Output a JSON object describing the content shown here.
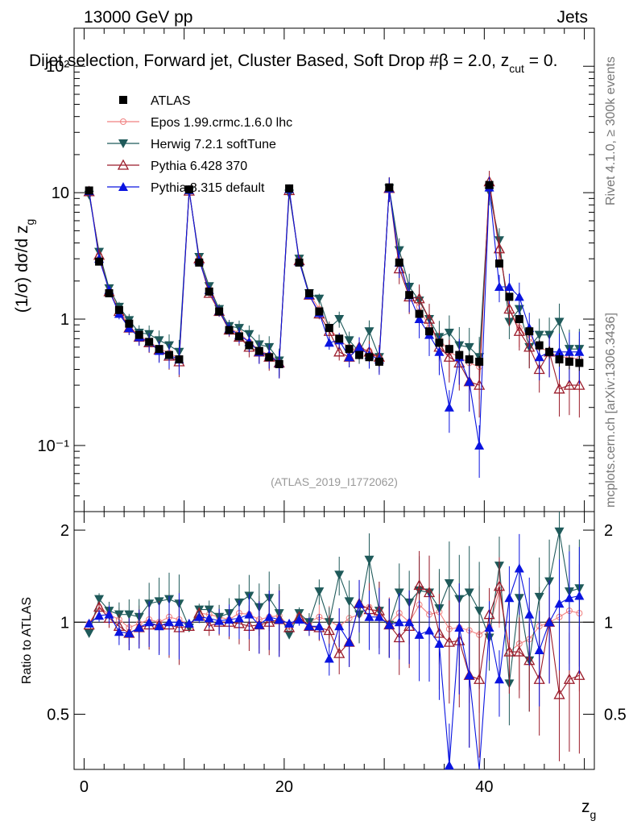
{
  "header": {
    "left": "13000 GeV pp",
    "right": "Jets",
    "title": "Dijet selection, Forward jet, Cluster Based, Soft Drop #β = 2.0, z",
    "title_sub": "cut",
    "title_tail": " = 0.",
    "side_rivet": "Rivet 4.1.0, ≥ 300k events",
    "side_mcplots": "mcplots.cern.ch [arXiv:1306.3436]",
    "watermark": "(ATLAS_2019_I1772062)"
  },
  "chart_data": {
    "type": "scatter",
    "xlabel": "z",
    "xlabel_sub": "g",
    "ylabel": "(1/σ) dσ/d z",
    "ylabel_sub": "g",
    "ratio_ylabel": "Ratio to ATLAS",
    "xlim": [
      -1,
      51
    ],
    "ylim_main": [
      0.03,
      200
    ],
    "ylim_ratio": [
      0.33,
      2.3
    ],
    "x_ticks": [
      "0",
      "20",
      "40"
    ],
    "y_ticks_main": [
      "10⁻¹",
      "1",
      "10",
      "10²"
    ],
    "y_ticks_ratio": [
      "0.5",
      "1",
      "2"
    ],
    "colors": {
      "ATLAS": "#000000",
      "Epos": "#f08080",
      "Herwig": "#1f5a5a",
      "Pythia6": "#9b1b2a",
      "Pythia8": "#0a14e0"
    },
    "x": [
      0.5,
      1.5,
      2.5,
      3.5,
      4.5,
      5.5,
      6.5,
      7.5,
      8.5,
      9.5,
      10.5,
      11.5,
      12.5,
      13.5,
      14.5,
      15.5,
      16.5,
      17.5,
      18.5,
      19.5,
      20.5,
      21.5,
      22.5,
      23.5,
      24.5,
      25.5,
      26.5,
      27.5,
      28.5,
      29.5,
      30.5,
      31.5,
      32.5,
      33.5,
      34.5,
      35.5,
      36.5,
      37.5,
      38.5,
      39.5,
      40.5,
      41.5,
      42.5,
      43.5,
      44.5,
      45.5,
      46.5,
      47.5,
      48.5,
      49.5
    ],
    "series": [
      {
        "name": "ATLAS",
        "marker": "square",
        "values": [
          10.4,
          2.85,
          1.6,
          1.18,
          0.92,
          0.75,
          0.66,
          0.58,
          0.52,
          0.48,
          10.6,
          2.8,
          1.65,
          1.15,
          0.82,
          0.73,
          0.62,
          0.56,
          0.5,
          0.44,
          10.8,
          2.8,
          1.6,
          1.15,
          0.85,
          0.7,
          0.58,
          0.52,
          0.5,
          0.46,
          11.0,
          2.8,
          1.55,
          1.1,
          0.8,
          0.65,
          0.58,
          0.52,
          0.48,
          0.46,
          11.5,
          2.75,
          1.5,
          1.0,
          0.8,
          0.62,
          0.55,
          0.48,
          0.46,
          0.45
        ],
        "err": [
          0.3,
          0.08,
          0.05,
          0.04,
          0.03,
          0.03,
          0.03,
          0.03,
          0.03,
          0.03,
          0.3,
          0.08,
          0.05,
          0.04,
          0.03,
          0.03,
          0.03,
          0.03,
          0.03,
          0.03,
          0.3,
          0.08,
          0.05,
          0.04,
          0.04,
          0.04,
          0.04,
          0.04,
          0.04,
          0.04,
          0.3,
          0.1,
          0.06,
          0.05,
          0.05,
          0.05,
          0.05,
          0.05,
          0.05,
          0.05,
          0.4,
          0.1,
          0.07,
          0.06,
          0.06,
          0.06,
          0.06,
          0.06,
          0.06,
          0.06
        ]
      },
      {
        "name": "Epos 1.99.crmc.1.6.0 lhc",
        "marker": "cross-circle",
        "values": [
          10.3,
          3.2,
          1.7,
          1.2,
          0.88,
          0.74,
          0.67,
          0.58,
          0.54,
          0.49,
          10.4,
          3.0,
          1.75,
          1.2,
          0.84,
          0.78,
          0.66,
          0.57,
          0.52,
          0.46,
          10.5,
          2.95,
          1.6,
          1.2,
          0.86,
          0.68,
          0.6,
          0.55,
          0.56,
          0.48,
          10.9,
          3.0,
          1.55,
          1.25,
          0.85,
          0.7,
          0.55,
          0.5,
          0.45,
          0.42,
          11.0,
          3.5,
          1.2,
          0.85,
          0.7,
          0.6,
          0.55,
          0.5,
          0.5,
          0.48
        ],
        "ratio": [
          0.99,
          1.12,
          1.06,
          1.02,
          0.96,
          0.99,
          1.02,
          1.0,
          1.04,
          1.02,
          0.98,
          1.07,
          1.06,
          1.04,
          1.02,
          1.07,
          1.06,
          1.02,
          1.04,
          1.05,
          0.97,
          1.05,
          1.0,
          1.04,
          1.01,
          0.97,
          1.03,
          1.06,
          1.12,
          1.04,
          0.99,
          1.07,
          1.0,
          1.14,
          1.06,
          1.08,
          0.95,
          0.96,
          0.94,
          0.91,
          0.96,
          1.27,
          0.8,
          0.85,
          0.88,
          0.97,
          1.0,
          1.04,
          1.09,
          1.07
        ]
      },
      {
        "name": "Herwig 7.2.1 softTune",
        "marker": "triangle-down",
        "values": [
          9.6,
          3.4,
          1.75,
          1.25,
          0.98,
          0.78,
          0.76,
          0.68,
          0.62,
          0.55,
          10.2,
          3.1,
          1.82,
          1.2,
          0.88,
          0.85,
          0.76,
          0.63,
          0.6,
          0.47,
          9.8,
          3.0,
          1.6,
          1.45,
          0.85,
          1.0,
          0.68,
          0.55,
          0.8,
          0.5,
          10.8,
          3.5,
          1.8,
          1.4,
          1.0,
          0.72,
          0.78,
          0.62,
          0.6,
          0.5,
          10.2,
          4.2,
          0.95,
          1.2,
          0.6,
          0.75,
          0.75,
          0.95,
          0.58,
          0.58
        ],
        "ratio": [
          0.92,
          1.19,
          1.09,
          1.06,
          1.06,
          1.04,
          1.15,
          1.17,
          1.19,
          1.15,
          0.96,
          1.1,
          1.1,
          1.04,
          1.07,
          1.16,
          1.22,
          1.12,
          1.2,
          1.07,
          0.91,
          1.07,
          1.0,
          1.26,
          1.0,
          1.43,
          1.17,
          1.06,
          1.6,
          1.09,
          0.98,
          1.25,
          1.16,
          1.27,
          1.25,
          1.11,
          1.34,
          1.19,
          1.25,
          1.09,
          0.89,
          1.53,
          0.63,
          1.2,
          0.75,
          1.21,
          1.36,
          1.98,
          1.26,
          1.29
        ]
      },
      {
        "name": "Pythia 6.428 370",
        "marker": "triangle-up-open",
        "values": [
          10.2,
          3.2,
          1.65,
          1.15,
          0.85,
          0.72,
          0.65,
          0.57,
          0.51,
          0.46,
          10.3,
          3.0,
          1.6,
          1.15,
          0.82,
          0.72,
          0.6,
          0.55,
          0.5,
          0.45,
          10.4,
          2.9,
          1.55,
          1.1,
          0.8,
          0.55,
          0.5,
          0.6,
          0.55,
          0.5,
          10.8,
          2.5,
          1.5,
          1.45,
          1.0,
          0.6,
          0.5,
          0.45,
          0.32,
          0.3,
          12.2,
          3.6,
          1.2,
          0.8,
          0.6,
          0.4,
          0.55,
          0.28,
          0.3,
          0.3
        ],
        "ratio": [
          0.98,
          1.12,
          1.03,
          0.97,
          0.92,
          0.96,
          0.98,
          0.98,
          0.98,
          0.96,
          0.97,
          1.07,
          0.97,
          1.0,
          1.0,
          0.99,
          0.97,
          0.98,
          1.0,
          1.02,
          0.96,
          1.04,
          0.97,
          0.96,
          0.94,
          0.79,
          0.86,
          1.15,
          1.1,
          1.09,
          0.98,
          0.89,
          0.97,
          1.32,
          1.25,
          0.92,
          0.86,
          0.87,
          0.67,
          0.65,
          1.06,
          1.31,
          0.8,
          0.8,
          0.75,
          0.65,
          1.0,
          0.58,
          0.65,
          0.67
        ]
      },
      {
        "name": "Pythia 8.315 default",
        "marker": "triangle-up",
        "values": [
          10.3,
          3.0,
          1.7,
          1.1,
          0.85,
          0.72,
          0.66,
          0.56,
          0.52,
          0.48,
          10.5,
          2.9,
          1.7,
          1.16,
          0.84,
          0.75,
          0.66,
          0.55,
          0.52,
          0.45,
          10.7,
          2.85,
          1.55,
          1.12,
          0.65,
          0.68,
          0.5,
          0.6,
          0.52,
          0.48,
          10.8,
          2.8,
          1.55,
          1.0,
          0.75,
          0.55,
          0.2,
          0.5,
          0.32,
          0.1,
          11.0,
          1.8,
          1.8,
          1.5,
          0.85,
          0.5,
          0.55,
          0.55,
          0.55,
          0.55
        ],
        "ratio": [
          0.99,
          1.05,
          1.06,
          0.93,
          0.92,
          0.96,
          1.0,
          0.97,
          1.0,
          1.0,
          0.99,
          1.04,
          1.03,
          1.01,
          1.02,
          1.03,
          1.06,
          0.98,
          1.04,
          1.02,
          0.99,
          1.02,
          0.97,
          0.97,
          0.76,
          0.97,
          0.86,
          1.15,
          1.04,
          1.04,
          0.98,
          1.0,
          1.0,
          0.91,
          0.94,
          0.85,
          0.34,
          0.96,
          0.67,
          0.22,
          0.96,
          0.65,
          1.2,
          1.5,
          1.06,
          0.81,
          1.0,
          1.15,
          1.2,
          1.22
        ]
      }
    ]
  }
}
